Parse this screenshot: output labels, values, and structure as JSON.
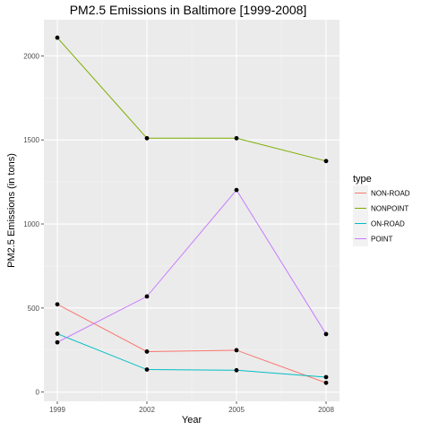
{
  "chart_data": {
    "type": "line",
    "title": "PM2.5 Emissions in Baltimore [1999-2008]",
    "xlabel": "Year",
    "ylabel": "PM2.5 Emissions (in tons)",
    "x": [
      1999,
      2002,
      2005,
      2008
    ],
    "xticks": [
      "1999",
      "2002",
      "2005",
      "2008"
    ],
    "xlim": [
      1998.55,
      2008.45
    ],
    "yticks": [
      "0",
      "500",
      "1000",
      "1500",
      "2000"
    ],
    "ylim": [
      -55,
      2215
    ],
    "legend_title": "type",
    "legend_position": "right",
    "grid": true,
    "series": [
      {
        "name": "NON-ROAD",
        "color": "#F8766D",
        "values": [
          522,
          241,
          249,
          55
        ]
      },
      {
        "name": "NONPOINT",
        "color": "#7CAE00",
        "values": [
          2108,
          1510,
          1510,
          1374
        ]
      },
      {
        "name": "ON-ROAD",
        "color": "#00BFC4",
        "values": [
          347,
          134,
          130,
          89
        ]
      },
      {
        "name": "POINT",
        "color": "#C77CFF",
        "values": [
          296,
          569,
          1202,
          345
        ]
      }
    ]
  }
}
